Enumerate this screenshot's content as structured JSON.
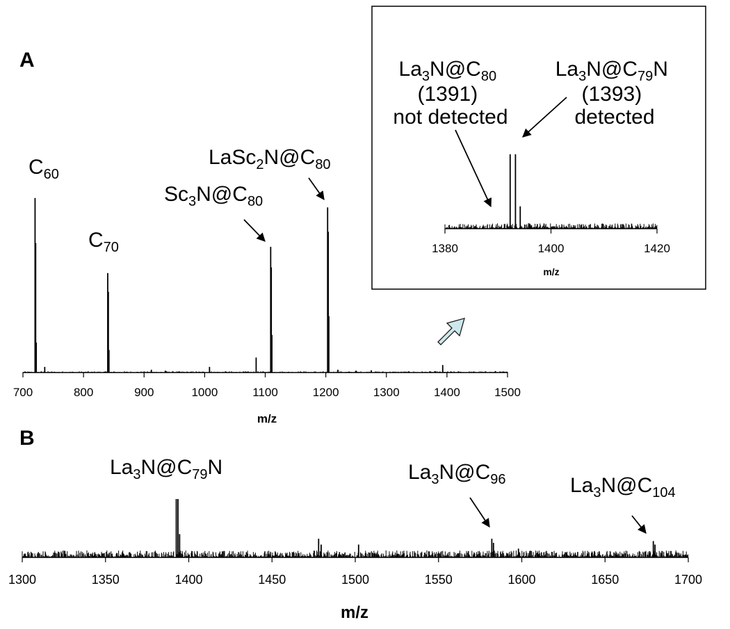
{
  "chart_data": [
    {
      "id": "panelA",
      "panel_label": "A",
      "type": "line",
      "xlabel": "m/z",
      "xlim": [
        700,
        1500
      ],
      "xticks": [
        700,
        800,
        900,
        1000,
        1100,
        1200,
        1300,
        1400,
        1500
      ],
      "ylim": [
        0,
        1
      ],
      "peaks": [
        {
          "x": 720,
          "y": 0.93
        },
        {
          "x": 721,
          "y": 0.69
        },
        {
          "x": 722,
          "y": 0.16
        },
        {
          "x": 736,
          "y": 0.03
        },
        {
          "x": 840,
          "y": 0.53
        },
        {
          "x": 841,
          "y": 0.43
        },
        {
          "x": 842,
          "y": 0.12
        },
        {
          "x": 912,
          "y": 0.015
        },
        {
          "x": 935,
          "y": 0.01
        },
        {
          "x": 1008,
          "y": 0.03
        },
        {
          "x": 1085,
          "y": 0.08
        },
        {
          "x": 1109,
          "y": 0.67
        },
        {
          "x": 1110,
          "y": 0.56
        },
        {
          "x": 1111,
          "y": 0.2
        },
        {
          "x": 1203,
          "y": 0.88
        },
        {
          "x": 1204,
          "y": 0.75
        },
        {
          "x": 1205,
          "y": 0.3
        },
        {
          "x": 1220,
          "y": 0.015
        },
        {
          "x": 1250,
          "y": 0.01
        },
        {
          "x": 1275,
          "y": 0.012
        },
        {
          "x": 1393,
          "y": 0.04
        },
        {
          "x": 1480,
          "y": 0.008
        }
      ],
      "annotations": [
        {
          "base": "C",
          "sub": "60",
          "post": ""
        },
        {
          "base": "C",
          "sub": "70",
          "post": ""
        },
        {
          "base": "Sc",
          "sub": "3",
          "mid": "N@C",
          "sub2": "80",
          "post": ""
        },
        {
          "base": "LaSc",
          "sub": "2",
          "mid": "N@C",
          "sub2": "80",
          "post": ""
        }
      ]
    },
    {
      "id": "inset",
      "type": "line",
      "xlabel": "m/z",
      "xlim": [
        1380,
        1420
      ],
      "xticks": [
        1380,
        1400,
        1420
      ],
      "ylim": [
        0,
        1
      ],
      "peaks": [
        {
          "x": 1392.3,
          "y": 1.0
        },
        {
          "x": 1393.3,
          "y": 1.0
        },
        {
          "x": 1394.2,
          "y": 0.3
        }
      ],
      "annotations": [
        {
          "lines": [
            "La3N@C80",
            "(1391)",
            "not detected"
          ]
        },
        {
          "lines": [
            "La3N@C79N",
            "(1393)",
            "detected"
          ]
        }
      ]
    },
    {
      "id": "panelB",
      "panel_label": "B",
      "type": "line",
      "xlabel": "m/z",
      "xlim": [
        1300,
        1700
      ],
      "xticks": [
        1300,
        1350,
        1400,
        1450,
        1500,
        1550,
        1600,
        1650,
        1700
      ],
      "ylim": [
        0,
        1
      ],
      "peaks": [
        {
          "x": 1392.5,
          "y": 1.0
        },
        {
          "x": 1393.5,
          "y": 1.0
        },
        {
          "x": 1394.5,
          "y": 0.4
        },
        {
          "x": 1478,
          "y": 0.32
        },
        {
          "x": 1479.5,
          "y": 0.22
        },
        {
          "x": 1502,
          "y": 0.22
        },
        {
          "x": 1582,
          "y": 0.32
        },
        {
          "x": 1583,
          "y": 0.25
        },
        {
          "x": 1598,
          "y": 0.15
        },
        {
          "x": 1679,
          "y": 0.28
        },
        {
          "x": 1680,
          "y": 0.22
        }
      ],
      "annotations": [
        {
          "text": "La3N@C79N"
        },
        {
          "text": "La3N@C96"
        },
        {
          "text": "La3N@C104"
        }
      ]
    }
  ],
  "labels": {
    "panelA": "A",
    "panelB": "B",
    "axisA": "m/z",
    "axisInset": "m/z",
    "axisB": "m/z",
    "C60": [
      "C",
      "60"
    ],
    "C70": [
      "C",
      "70"
    ],
    "Sc3N": [
      "Sc",
      "3",
      "N@C",
      "80"
    ],
    "LaSc2N": [
      "LaSc",
      "2",
      "N@C",
      "80"
    ],
    "insetLeft": [
      "La",
      "3",
      "N@C",
      "80",
      "(1391)",
      "not detected"
    ],
    "insetRight": [
      "La",
      "3",
      "N@C",
      "79",
      "N",
      "(1393)",
      "detected"
    ],
    "B79N": [
      "La",
      "3",
      "N@C",
      "79",
      "N"
    ],
    "B96": [
      "La",
      "3",
      "N@C",
      "96"
    ],
    "B104": [
      "La",
      "3",
      "N@C",
      "104"
    ]
  },
  "colors": {
    "trace": "#000000",
    "zoom_arrow_fill": "#cde8ec",
    "zoom_arrow_stroke": "#1a1a1a",
    "inset_border": "#000000"
  },
  "icons": {
    "zoom_arrow": "diagonal-block-arrow-icon"
  }
}
